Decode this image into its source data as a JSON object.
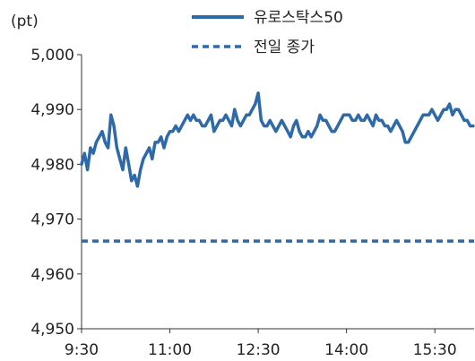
{
  "chart_data": {
    "type": "line",
    "unit_label": "(pt)",
    "x_ticks": [
      "9:30",
      "11:00",
      "12:30",
      "14:00",
      "15:30"
    ],
    "y_ticks": [
      "5,000",
      "4,990",
      "4,980",
      "4,970",
      "4,960",
      "4,950"
    ],
    "ylim": [
      4950,
      5000
    ],
    "x_range": [
      "9:30",
      "16:10"
    ],
    "grid": false,
    "legend_position": "top-right",
    "series": [
      {
        "name": "유로스탁스50",
        "style": "solid",
        "color": "#2e6aa8",
        "x": [
          "9:30",
          "9:33",
          "9:36",
          "9:39",
          "9:42",
          "9:45",
          "9:48",
          "9:51",
          "9:54",
          "9:57",
          "10:00",
          "10:03",
          "10:06",
          "10:09",
          "10:12",
          "10:15",
          "10:18",
          "10:21",
          "10:24",
          "10:27",
          "10:30",
          "10:33",
          "10:36",
          "10:39",
          "10:42",
          "10:45",
          "10:48",
          "10:51",
          "10:54",
          "10:57",
          "11:00",
          "11:03",
          "11:06",
          "11:09",
          "11:12",
          "11:15",
          "11:18",
          "11:21",
          "11:24",
          "11:27",
          "11:30",
          "11:33",
          "11:36",
          "11:39",
          "11:42",
          "11:45",
          "11:48",
          "11:51",
          "11:54",
          "11:57",
          "12:00",
          "12:03",
          "12:06",
          "12:09",
          "12:12",
          "12:15",
          "12:18",
          "12:21",
          "12:24",
          "12:27",
          "12:30",
          "12:33",
          "12:36",
          "12:39",
          "12:42",
          "12:45",
          "12:48",
          "12:51",
          "12:54",
          "12:57",
          "13:00",
          "13:03",
          "13:06",
          "13:09",
          "13:12",
          "13:15",
          "13:18",
          "13:21",
          "13:24",
          "13:27",
          "13:30",
          "13:33",
          "13:36",
          "13:39",
          "13:42",
          "13:45",
          "13:48",
          "13:51",
          "13:54",
          "13:57",
          "14:00",
          "14:03",
          "14:06",
          "14:09",
          "14:12",
          "14:15",
          "14:18",
          "14:21",
          "14:24",
          "14:27",
          "14:30",
          "14:33",
          "14:36",
          "14:39",
          "14:42",
          "14:45",
          "14:48",
          "14:51",
          "14:54",
          "14:57",
          "15:00",
          "15:03",
          "15:06",
          "15:09",
          "15:12",
          "15:15",
          "15:18",
          "15:21",
          "15:24",
          "15:27",
          "15:30",
          "15:33",
          "15:36",
          "15:39",
          "15:42",
          "15:45",
          "15:48",
          "15:51",
          "15:54",
          "15:57",
          "16:00",
          "16:03",
          "16:06",
          "16:09"
        ],
        "values": [
          4980,
          4982,
          4979,
          4983,
          4982,
          4984,
          4985,
          4986,
          4984,
          4983,
          4989,
          4987,
          4983,
          4981,
          4979,
          4983,
          4980,
          4977,
          4978,
          4976,
          4979,
          4981,
          4982,
          4983,
          4981,
          4984,
          4984,
          4985,
          4983,
          4985,
          4986,
          4986,
          4987,
          4986,
          4987,
          4988,
          4989,
          4988,
          4989,
          4988,
          4988,
          4987,
          4987,
          4988,
          4989,
          4986,
          4987,
          4988,
          4988,
          4989,
          4988,
          4987,
          4990,
          4988,
          4987,
          4988,
          4989,
          4989,
          4990,
          4991,
          4993,
          4988,
          4987,
          4987,
          4988,
          4987,
          4986,
          4987,
          4988,
          4987,
          4986,
          4985,
          4987,
          4988,
          4986,
          4985,
          4985,
          4986,
          4985,
          4986,
          4987,
          4989,
          4988,
          4988,
          4987,
          4986,
          4986,
          4987,
          4988,
          4989,
          4989,
          4989,
          4988,
          4988,
          4989,
          4988,
          4988,
          4989,
          4988,
          4987,
          4989,
          4988,
          4988,
          4987,
          4987,
          4986,
          4987,
          4988,
          4987,
          4986,
          4984,
          4984,
          4985,
          4986,
          4987,
          4988,
          4989,
          4989,
          4989,
          4990,
          4989,
          4988,
          4989,
          4990,
          4990,
          4991,
          4989,
          4990,
          4990,
          4989,
          4988,
          4988,
          4987,
          4987
        ]
      },
      {
        "name": "전일 종가",
        "style": "dashed",
        "color": "#2e6aa8",
        "value": 4966
      }
    ]
  }
}
